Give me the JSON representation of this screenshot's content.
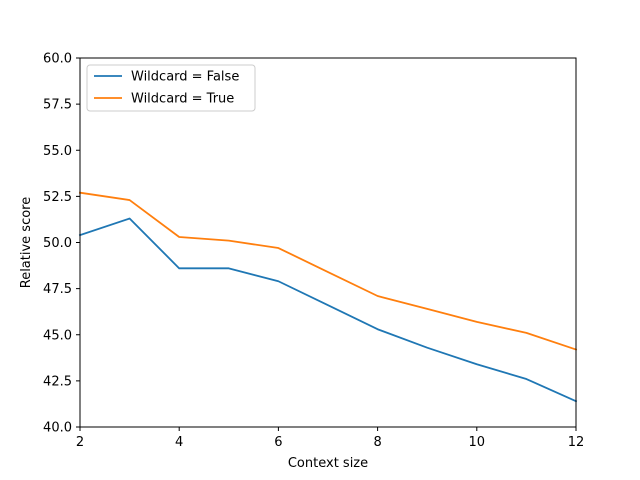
{
  "chart_data": {
    "type": "line",
    "title": "",
    "xlabel": "Context size",
    "ylabel": "Relative score",
    "xlim": [
      2,
      12
    ],
    "ylim": [
      40.0,
      60.0
    ],
    "xticks": [
      2,
      4,
      6,
      8,
      10,
      12
    ],
    "xtick_labels": [
      "2",
      "4",
      "6",
      "8",
      "10",
      "12"
    ],
    "yticks": [
      40.0,
      42.5,
      45.0,
      47.5,
      50.0,
      52.5,
      55.0,
      57.5,
      60.0
    ],
    "ytick_labels": [
      "40.0",
      "42.5",
      "45.0",
      "47.5",
      "50.0",
      "52.5",
      "55.0",
      "57.5",
      "60.0"
    ],
    "grid": false,
    "legend_position": "top-left",
    "x": [
      2,
      3,
      4,
      5,
      6,
      7,
      8,
      9,
      10,
      11,
      12
    ],
    "series": [
      {
        "name": "Wildcard = False",
        "color": "#1f77b4",
        "values": [
          50.4,
          51.3,
          48.6,
          48.6,
          47.9,
          46.6,
          45.3,
          44.3,
          43.4,
          42.6,
          41.4
        ]
      },
      {
        "name": "Wildcard = True",
        "color": "#ff7f0e",
        "values": [
          52.7,
          52.3,
          50.3,
          50.1,
          49.7,
          48.4,
          47.1,
          46.4,
          45.7,
          45.1,
          44.2
        ]
      }
    ]
  }
}
